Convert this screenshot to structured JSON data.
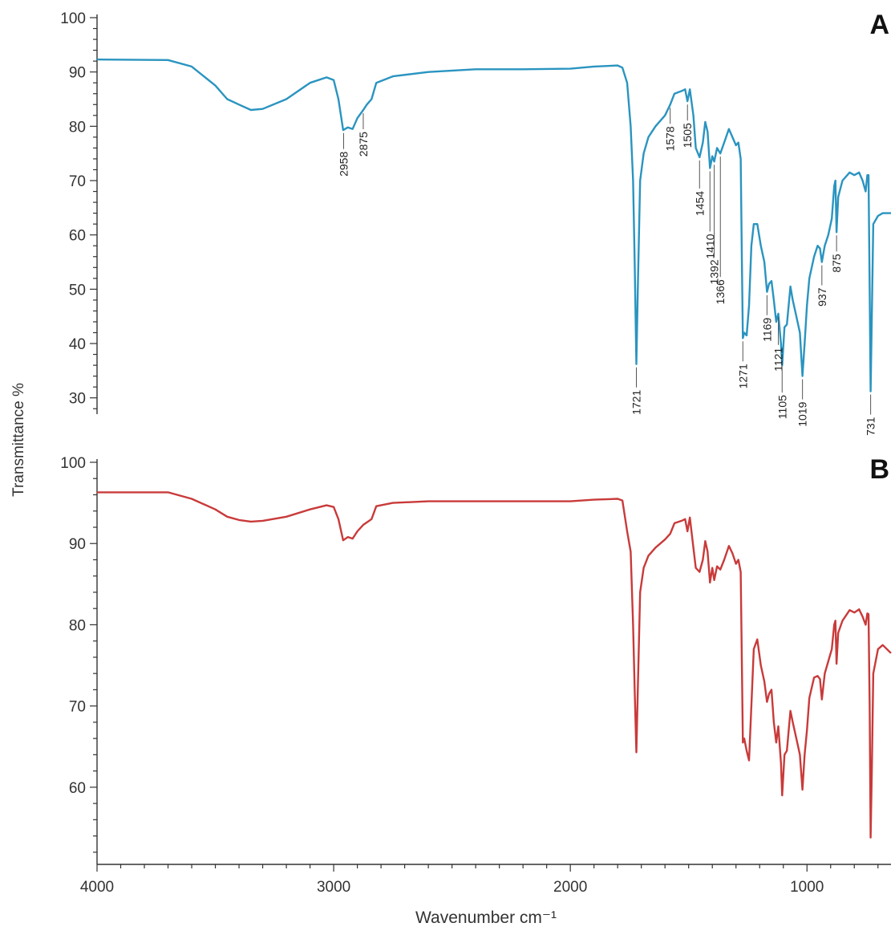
{
  "chart_data": [
    {
      "type": "line",
      "panel": "A",
      "ylabel": "Transmittance %",
      "color": "#2a94c0",
      "xlim": [
        4000,
        645
      ],
      "ylim": [
        27,
        100
      ],
      "yticks": [
        30,
        40,
        50,
        60,
        70,
        80,
        90,
        100
      ],
      "yminorticks": [
        28,
        32,
        34,
        36,
        38,
        42,
        44,
        46,
        48,
        52,
        54,
        56,
        58,
        62,
        64,
        66,
        68,
        72,
        74,
        76,
        78,
        82,
        84,
        86,
        88,
        92,
        94,
        96,
        98
      ],
      "peaks": [
        2958,
        2875,
        1721,
        1578,
        1505,
        1454,
        1410,
        1392,
        1366,
        1271,
        1169,
        1121,
        1105,
        1019,
        937,
        875,
        731
      ],
      "x": [
        4000,
        3700,
        3600,
        3500,
        3450,
        3400,
        3350,
        3300,
        3200,
        3100,
        3030,
        3000,
        2980,
        2960,
        2940,
        2920,
        2900,
        2875,
        2860,
        2840,
        2820,
        2750,
        2600,
        2400,
        2200,
        2000,
        1900,
        1800,
        1780,
        1760,
        1745,
        1735,
        1728,
        1721,
        1715,
        1705,
        1690,
        1670,
        1640,
        1600,
        1578,
        1560,
        1530,
        1515,
        1505,
        1495,
        1480,
        1470,
        1454,
        1440,
        1430,
        1420,
        1410,
        1400,
        1392,
        1380,
        1366,
        1350,
        1330,
        1315,
        1300,
        1290,
        1280,
        1275,
        1271,
        1265,
        1255,
        1245,
        1235,
        1225,
        1210,
        1195,
        1180,
        1169,
        1160,
        1150,
        1140,
        1130,
        1121,
        1110,
        1105,
        1095,
        1085,
        1070,
        1060,
        1045,
        1030,
        1019,
        1010,
        1000,
        990,
        970,
        955,
        945,
        937,
        925,
        910,
        895,
        885,
        880,
        875,
        868,
        850,
        820,
        800,
        780,
        765,
        752,
        745,
        740,
        735,
        731,
        726,
        720,
        700,
        680,
        645
      ],
      "values": [
        92.3,
        92.2,
        91,
        87.5,
        85,
        84,
        83,
        83.2,
        85,
        88,
        89,
        88.5,
        85,
        79.3,
        79.8,
        79.5,
        81.5,
        83,
        84,
        85,
        88,
        89.2,
        90,
        90.5,
        90.5,
        90.6,
        91,
        91.2,
        90.8,
        88,
        80,
        70,
        55,
        36.2,
        50,
        70,
        75,
        78,
        80,
        82,
        84,
        86,
        86.5,
        86.8,
        84.6,
        86.8,
        82,
        76,
        74.3,
        77,
        80.8,
        79,
        72.3,
        74.5,
        73.5,
        76,
        75,
        77,
        79.5,
        78,
        76.5,
        77,
        74,
        55,
        41,
        42,
        41.5,
        47,
        58,
        62,
        62,
        58,
        55,
        49.5,
        51,
        51.5,
        48,
        44,
        45.5,
        40,
        36,
        43,
        43.5,
        50.5,
        48,
        45,
        42,
        34,
        40,
        47,
        52,
        56,
        58,
        57.5,
        55,
        58,
        60,
        63,
        69,
        70,
        60.5,
        67,
        70,
        71.5,
        71,
        71.5,
        70,
        68,
        71,
        71,
        50,
        31.2,
        45,
        62,
        63.5,
        64,
        64
      ]
    },
    {
      "type": "line",
      "panel": "B",
      "xlabel": "Wavenumber cm⁻¹",
      "color": "#c93a3a",
      "xlim": [
        4000,
        645
      ],
      "xticks": [
        1000,
        2000,
        3000,
        4000
      ],
      "xminorticks": [
        3900,
        3800,
        3700,
        3600,
        3500,
        3400,
        3300,
        3200,
        3100,
        2900,
        2800,
        2700,
        2600,
        2500,
        2400,
        2300,
        2200,
        2100,
        1900,
        1800,
        1700,
        1600,
        1500,
        1400,
        1300,
        1200,
        1100,
        900,
        800,
        700
      ],
      "ylim": [
        50.5,
        100
      ],
      "yticks": [
        60,
        70,
        80,
        90,
        100
      ],
      "yminorticks": [
        52,
        54,
        56,
        58,
        62,
        64,
        66,
        68,
        72,
        74,
        76,
        78,
        82,
        84,
        86,
        88,
        92,
        94,
        96,
        98
      ],
      "x": [
        4000,
        3700,
        3600,
        3500,
        3450,
        3400,
        3350,
        3300,
        3200,
        3100,
        3030,
        3000,
        2980,
        2960,
        2940,
        2920,
        2900,
        2875,
        2860,
        2840,
        2820,
        2750,
        2600,
        2400,
        2200,
        2000,
        1900,
        1800,
        1780,
        1760,
        1745,
        1735,
        1728,
        1721,
        1715,
        1705,
        1690,
        1670,
        1640,
        1600,
        1578,
        1560,
        1530,
        1515,
        1505,
        1495,
        1480,
        1470,
        1454,
        1440,
        1430,
        1420,
        1410,
        1400,
        1392,
        1380,
        1366,
        1350,
        1330,
        1315,
        1300,
        1290,
        1280,
        1275,
        1271,
        1265,
        1255,
        1245,
        1235,
        1225,
        1210,
        1195,
        1180,
        1169,
        1160,
        1150,
        1140,
        1130,
        1121,
        1110,
        1105,
        1095,
        1085,
        1070,
        1060,
        1045,
        1030,
        1019,
        1010,
        1000,
        990,
        970,
        955,
        945,
        937,
        925,
        910,
        895,
        885,
        880,
        875,
        868,
        850,
        820,
        800,
        780,
        765,
        752,
        745,
        740,
        735,
        731,
        726,
        720,
        700,
        680,
        645
      ],
      "values": [
        96.3,
        96.3,
        95.5,
        94.2,
        93.3,
        92.9,
        92.7,
        92.8,
        93.3,
        94.2,
        94.7,
        94.5,
        93,
        90.4,
        90.8,
        90.6,
        91.5,
        92.3,
        92.6,
        93,
        94.6,
        95,
        95.2,
        95.2,
        95.2,
        95.2,
        95.4,
        95.5,
        95.3,
        91.5,
        89,
        80,
        72,
        64.3,
        72,
        84,
        87,
        88.5,
        89.5,
        90.5,
        91.2,
        92.5,
        92.8,
        93,
        91.5,
        93.2,
        89.5,
        87,
        86.5,
        88,
        90.3,
        89,
        85.2,
        87,
        85.5,
        87.2,
        86.8,
        88,
        89.7,
        88.8,
        87.5,
        88,
        86.5,
        75,
        65.5,
        66,
        64.5,
        63.3,
        70,
        77,
        78.2,
        75,
        73,
        70.5,
        71.5,
        72,
        68,
        65.5,
        67.5,
        63,
        59,
        64,
        64.5,
        69.4,
        68,
        66,
        64,
        59.7,
        64,
        67,
        71,
        73.5,
        73.7,
        73.3,
        70.8,
        74,
        75.5,
        77,
        80,
        80.5,
        75.2,
        79,
        80.5,
        81.8,
        81.5,
        81.9,
        81,
        80,
        81.4,
        81.3,
        70,
        53.8,
        62,
        74,
        77,
        77.5,
        76.5
      ]
    }
  ]
}
